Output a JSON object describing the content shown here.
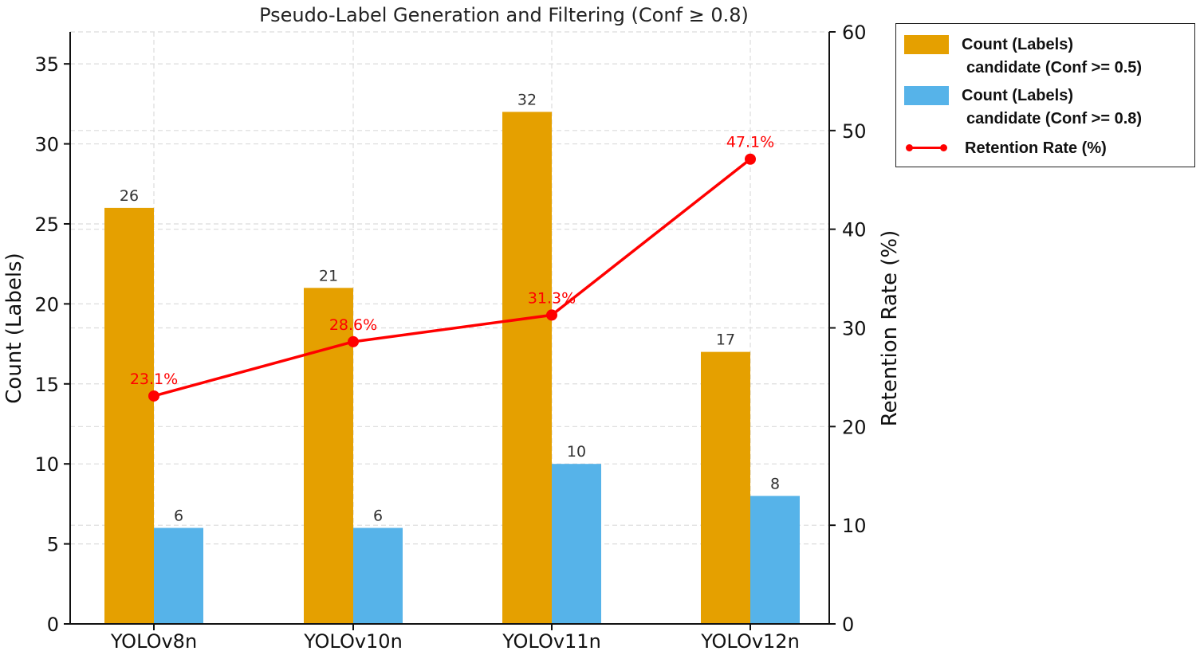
{
  "chart_data": {
    "type": "bar",
    "title": "Pseudo-Label Generation and Filtering (Conf ≥ 0.8)",
    "categories": [
      "YOLOv8n",
      "YOLOv10n",
      "YOLOv11n",
      "YOLOv12n"
    ],
    "series": [
      {
        "name": "Count (Labels) candidate (Conf >= 0.5)",
        "name_lines": [
          "Count (Labels)",
          "candidate (Conf >= 0.5)"
        ],
        "values": [
          26,
          21,
          32,
          17
        ],
        "color": "#e5a000",
        "axis": "left"
      },
      {
        "name": "Count (Labels) candidate (Conf >= 0.8)",
        "name_lines": [
          "Count (Labels)",
          "candidate (Conf >= 0.8)"
        ],
        "values": [
          6,
          6,
          10,
          8
        ],
        "color": "#56b3e9",
        "axis": "left"
      }
    ],
    "line_series": {
      "name": "Retention Rate (%)",
      "values": [
        23.1,
        28.6,
        31.3,
        47.1
      ],
      "labels": [
        "23.1%",
        "28.6%",
        "31.3%",
        "47.1%"
      ],
      "color": "#ff0000",
      "axis": "right"
    },
    "ylabel": "Count (Labels)",
    "y2label": "Retention Rate (%)",
    "ylim": [
      0,
      37
    ],
    "y2lim": [
      0,
      60
    ],
    "yticks": [
      0,
      5,
      10,
      15,
      20,
      25,
      30,
      35
    ],
    "y2ticks": [
      0,
      10,
      20,
      30,
      40,
      50,
      60
    ],
    "grid": true,
    "legend_position": "outside-top-right"
  }
}
